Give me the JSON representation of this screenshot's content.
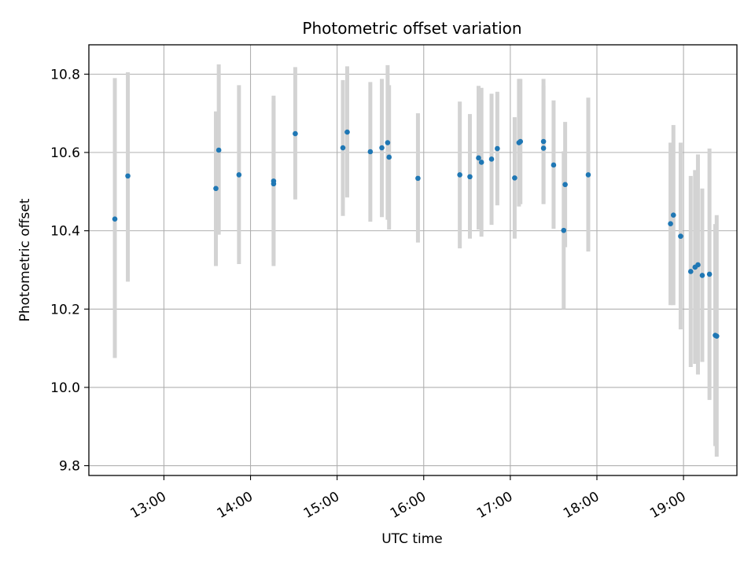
{
  "colors": {
    "marker": "#1f77b4",
    "errorbar": "#d3d3d3",
    "grid": "#b0b0b0",
    "axes": "#000000",
    "background": "#ffffff"
  },
  "chart_data": {
    "type": "scatter",
    "title": "Photometric offset variation",
    "xlabel": "UTC time",
    "ylabel": "Photometric offset",
    "xlim": [
      "12:08",
      "19:37"
    ],
    "ylim": [
      9.775,
      10.875
    ],
    "grid": true,
    "x_axis_type": "time",
    "x_ticks": [
      "13:00",
      "14:00",
      "15:00",
      "16:00",
      "17:00",
      "18:00",
      "19:00"
    ],
    "y_ticks": [
      "9.8",
      "10.0",
      "10.2",
      "10.4",
      "10.6",
      "10.8"
    ],
    "series": [
      {
        "errorbars": true,
        "points": [
          {
            "x": "12:26",
            "y": 10.43,
            "yerr_low": 10.075,
            "yerr_high": 10.79
          },
          {
            "x": "12:35",
            "y": 10.54,
            "yerr_low": 10.27,
            "yerr_high": 10.805
          },
          {
            "x": "13:36",
            "y": 10.508,
            "yerr_low": 10.31,
            "yerr_high": 10.705
          },
          {
            "x": "13:38",
            "y": 10.606,
            "yerr_low": 10.39,
            "yerr_high": 10.825
          },
          {
            "x": "13:52",
            "y": 10.543,
            "yerr_low": 10.315,
            "yerr_high": 10.772
          },
          {
            "x": "14:16",
            "y": 10.527,
            "yerr_low": 10.31,
            "yerr_high": 10.745
          },
          {
            "x": "14:16",
            "y": 10.52,
            "yerr_low": 10.32,
            "yerr_high": 10.73
          },
          {
            "x": "14:31",
            "y": 10.648,
            "yerr_low": 10.48,
            "yerr_high": 10.818
          },
          {
            "x": "15:04",
            "y": 10.612,
            "yerr_low": 10.438,
            "yerr_high": 10.785
          },
          {
            "x": "15:07",
            "y": 10.652,
            "yerr_low": 10.485,
            "yerr_high": 10.82
          },
          {
            "x": "15:23",
            "y": 10.602,
            "yerr_low": 10.423,
            "yerr_high": 10.78
          },
          {
            "x": "15:31",
            "y": 10.612,
            "yerr_low": 10.435,
            "yerr_high": 10.788
          },
          {
            "x": "15:35",
            "y": 10.625,
            "yerr_low": 10.428,
            "yerr_high": 10.823
          },
          {
            "x": "15:36",
            "y": 10.588,
            "yerr_low": 10.403,
            "yerr_high": 10.772
          },
          {
            "x": "15:56",
            "y": 10.534,
            "yerr_low": 10.37,
            "yerr_high": 10.7
          },
          {
            "x": "16:25",
            "y": 10.543,
            "yerr_low": 10.355,
            "yerr_high": 10.73
          },
          {
            "x": "16:32",
            "y": 10.538,
            "yerr_low": 10.38,
            "yerr_high": 10.698
          },
          {
            "x": "16:38",
            "y": 10.586,
            "yerr_low": 10.403,
            "yerr_high": 10.77
          },
          {
            "x": "16:40",
            "y": 10.575,
            "yerr_low": 10.385,
            "yerr_high": 10.765
          },
          {
            "x": "16:47",
            "y": 10.583,
            "yerr_low": 10.415,
            "yerr_high": 10.75
          },
          {
            "x": "16:51",
            "y": 10.61,
            "yerr_low": 10.465,
            "yerr_high": 10.755
          },
          {
            "x": "17:03",
            "y": 10.535,
            "yerr_low": 10.38,
            "yerr_high": 10.69
          },
          {
            "x": "17:06",
            "y": 10.625,
            "yerr_low": 10.462,
            "yerr_high": 10.788
          },
          {
            "x": "17:07",
            "y": 10.628,
            "yerr_low": 10.468,
            "yerr_high": 10.788
          },
          {
            "x": "17:23",
            "y": 10.611,
            "yerr_low": 10.47,
            "yerr_high": 10.77
          },
          {
            "x": "17:23",
            "y": 10.628,
            "yerr_low": 10.468,
            "yerr_high": 10.788
          },
          {
            "x": "17:30",
            "y": 10.568,
            "yerr_low": 10.405,
            "yerr_high": 10.733
          },
          {
            "x": "17:37",
            "y": 10.401,
            "yerr_low": 10.2,
            "yerr_high": 10.603
          },
          {
            "x": "17:38",
            "y": 10.518,
            "yerr_low": 10.358,
            "yerr_high": 10.678
          },
          {
            "x": "17:54",
            "y": 10.543,
            "yerr_low": 10.347,
            "yerr_high": 10.74
          },
          {
            "x": "18:51",
            "y": 10.418,
            "yerr_low": 10.21,
            "yerr_high": 10.625
          },
          {
            "x": "18:53",
            "y": 10.44,
            "yerr_low": 10.21,
            "yerr_high": 10.67
          },
          {
            "x": "18:58",
            "y": 10.386,
            "yerr_low": 10.148,
            "yerr_high": 10.625
          },
          {
            "x": "19:05",
            "y": 10.296,
            "yerr_low": 10.052,
            "yerr_high": 10.54
          },
          {
            "x": "19:08",
            "y": 10.307,
            "yerr_low": 10.06,
            "yerr_high": 10.555
          },
          {
            "x": "19:10",
            "y": 10.313,
            "yerr_low": 10.033,
            "yerr_high": 10.595
          },
          {
            "x": "19:13",
            "y": 10.286,
            "yerr_low": 10.065,
            "yerr_high": 10.508
          },
          {
            "x": "19:18",
            "y": 10.289,
            "yerr_low": 9.968,
            "yerr_high": 10.61
          },
          {
            "x": "19:22",
            "y": 10.133,
            "yerr_low": 9.85,
            "yerr_high": 10.417
          },
          {
            "x": "19:23",
            "y": 10.131,
            "yerr_low": 9.823,
            "yerr_high": 10.44
          }
        ]
      }
    ]
  }
}
